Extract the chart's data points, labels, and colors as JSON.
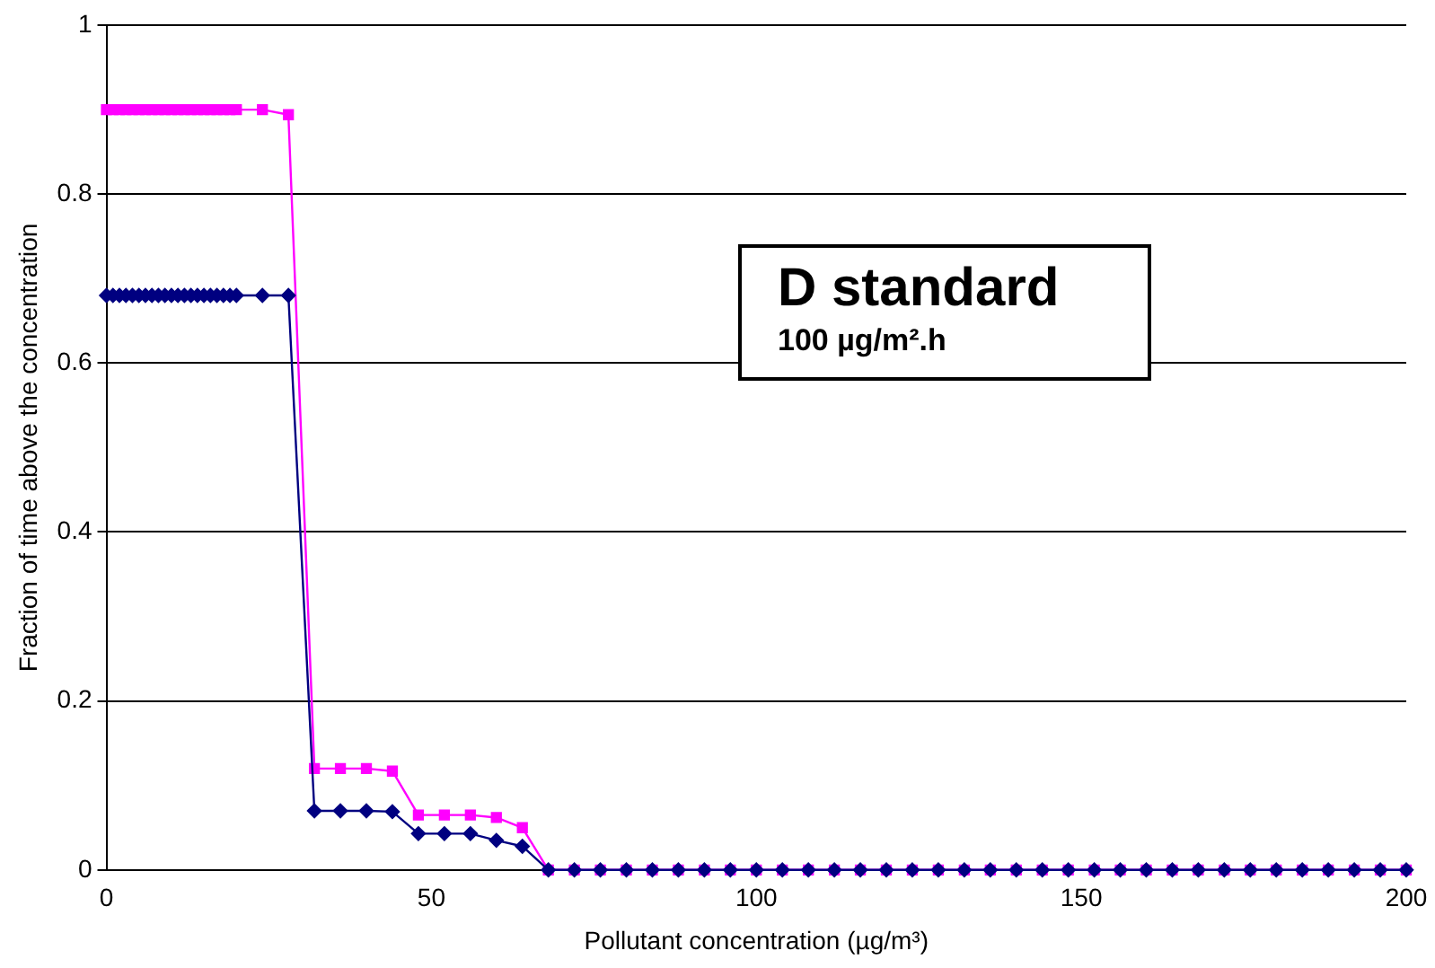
{
  "chart_data": {
    "type": "line",
    "xlabel": "Pollutant concentration (µg/m³)",
    "ylabel": "Fraction of time above the concentration",
    "x": [
      0,
      1,
      2,
      3,
      4,
      5,
      6,
      7,
      8,
      9,
      10,
      11,
      12,
      13,
      14,
      15,
      16,
      17,
      18,
      19,
      20,
      24,
      28,
      32,
      36,
      40,
      44,
      48,
      52,
      56,
      60,
      64,
      68,
      72,
      76,
      80,
      84,
      88,
      92,
      96,
      100,
      104,
      108,
      112,
      116,
      120,
      124,
      128,
      132,
      136,
      140,
      144,
      148,
      152,
      156,
      160,
      164,
      168,
      172,
      176,
      180,
      184,
      188,
      192,
      196,
      200
    ],
    "series": [
      {
        "color": "#000080",
        "marker": "diamond",
        "values": [
          0.68,
          0.68,
          0.68,
          0.68,
          0.68,
          0.68,
          0.68,
          0.68,
          0.68,
          0.68,
          0.68,
          0.68,
          0.68,
          0.68,
          0.68,
          0.68,
          0.68,
          0.68,
          0.68,
          0.68,
          0.68,
          0.68,
          0.68,
          0.07,
          0.07,
          0.07,
          0.069,
          0.043,
          0.043,
          0.043,
          0.035,
          0.028,
          0,
          0,
          0,
          0,
          0,
          0,
          0,
          0,
          0,
          0,
          0,
          0,
          0,
          0,
          0,
          0,
          0,
          0,
          0,
          0,
          0,
          0,
          0,
          0,
          0,
          0,
          0,
          0,
          0,
          0,
          0,
          0,
          0,
          0
        ]
      },
      {
        "color": "#ff00ff",
        "marker": "square",
        "values": [
          0.9,
          0.9,
          0.9,
          0.9,
          0.9,
          0.9,
          0.9,
          0.9,
          0.9,
          0.9,
          0.9,
          0.9,
          0.9,
          0.9,
          0.9,
          0.9,
          0.9,
          0.9,
          0.9,
          0.9,
          0.9,
          0.9,
          0.894,
          0.12,
          0.12,
          0.12,
          0.117,
          0.065,
          0.065,
          0.065,
          0.062,
          0.05,
          0,
          0,
          0,
          0,
          0,
          0,
          0,
          0,
          0,
          0,
          0,
          0,
          0,
          0,
          0,
          0,
          0,
          0,
          0,
          0,
          0,
          0,
          0,
          0,
          0,
          0,
          0,
          0,
          0,
          0,
          0,
          0,
          0,
          0
        ]
      }
    ],
    "xlim": [
      0,
      200
    ],
    "xticks": [
      0,
      50,
      100,
      150,
      200
    ],
    "ylim": [
      0,
      1
    ],
    "yticks": [
      0,
      0.2,
      0.4,
      0.6,
      0.8,
      1
    ],
    "grid": "y",
    "legend": false,
    "annotations": [
      "D standard",
      "100 µg/m².h"
    ]
  }
}
